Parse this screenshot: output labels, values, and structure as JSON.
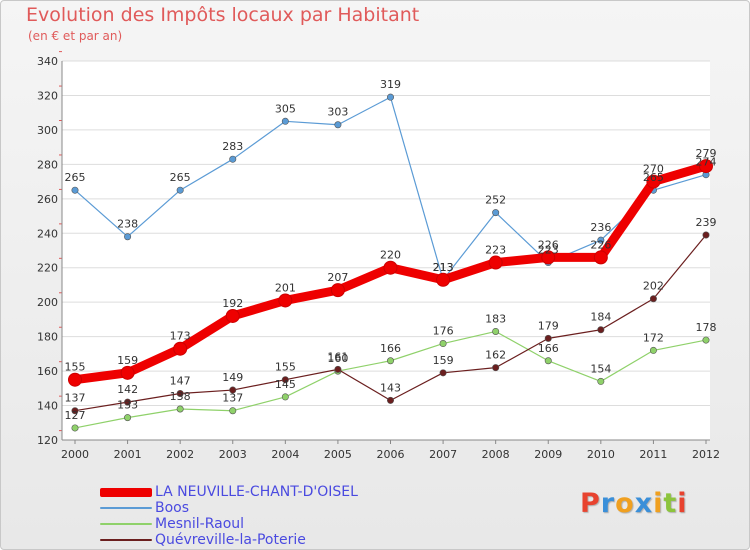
{
  "chart_data": {
    "type": "line",
    "title": "Evolution des Impôts locaux par Habitant",
    "subtitle": "(en € et par an)",
    "xlabel": "",
    "ylabel": "",
    "x": [
      "2000",
      "2001",
      "2002",
      "2003",
      "2004",
      "2005",
      "2006",
      "2007",
      "2008",
      "2009",
      "2010",
      "2011",
      "2012"
    ],
    "ylim": [
      120,
      340
    ],
    "yticks": [
      120,
      140,
      160,
      180,
      200,
      220,
      240,
      260,
      280,
      300,
      320,
      340
    ],
    "series": [
      {
        "name": "LA NEUVILLE-CHANT-D'OISEL",
        "color": "#ee0000",
        "values": [
          155,
          159,
          173,
          192,
          201,
          207,
          220,
          213,
          223,
          226,
          226,
          270,
          279
        ]
      },
      {
        "name": "Boos",
        "color": "#5b9bd5",
        "values": [
          265,
          238,
          265,
          283,
          305,
          303,
          319,
          213,
          252,
          223,
          236,
          265,
          274
        ]
      },
      {
        "name": "Mesnil-Raoul",
        "color": "#8fd16a",
        "values": [
          127,
          133,
          138,
          137,
          145,
          160,
          166,
          176,
          183,
          166,
          154,
          172,
          178
        ]
      },
      {
        "name": "Quévreville-la-Poterie",
        "color": "#6b1f1f",
        "values": [
          137,
          142,
          147,
          149,
          155,
          161,
          143,
          159,
          162,
          179,
          184,
          202,
          239
        ]
      }
    ]
  },
  "brand": {
    "letters": [
      {
        "ch": "P",
        "color": "#e8432f"
      },
      {
        "ch": "r",
        "color": "#3a8fd9"
      },
      {
        "ch": "o",
        "color": "#f0a020"
      },
      {
        "ch": "x",
        "color": "#3a8fd9"
      },
      {
        "ch": "i",
        "color": "#f0a020"
      },
      {
        "ch": "t",
        "color": "#8cc43c"
      },
      {
        "ch": "i",
        "color": "#e8432f"
      }
    ]
  }
}
